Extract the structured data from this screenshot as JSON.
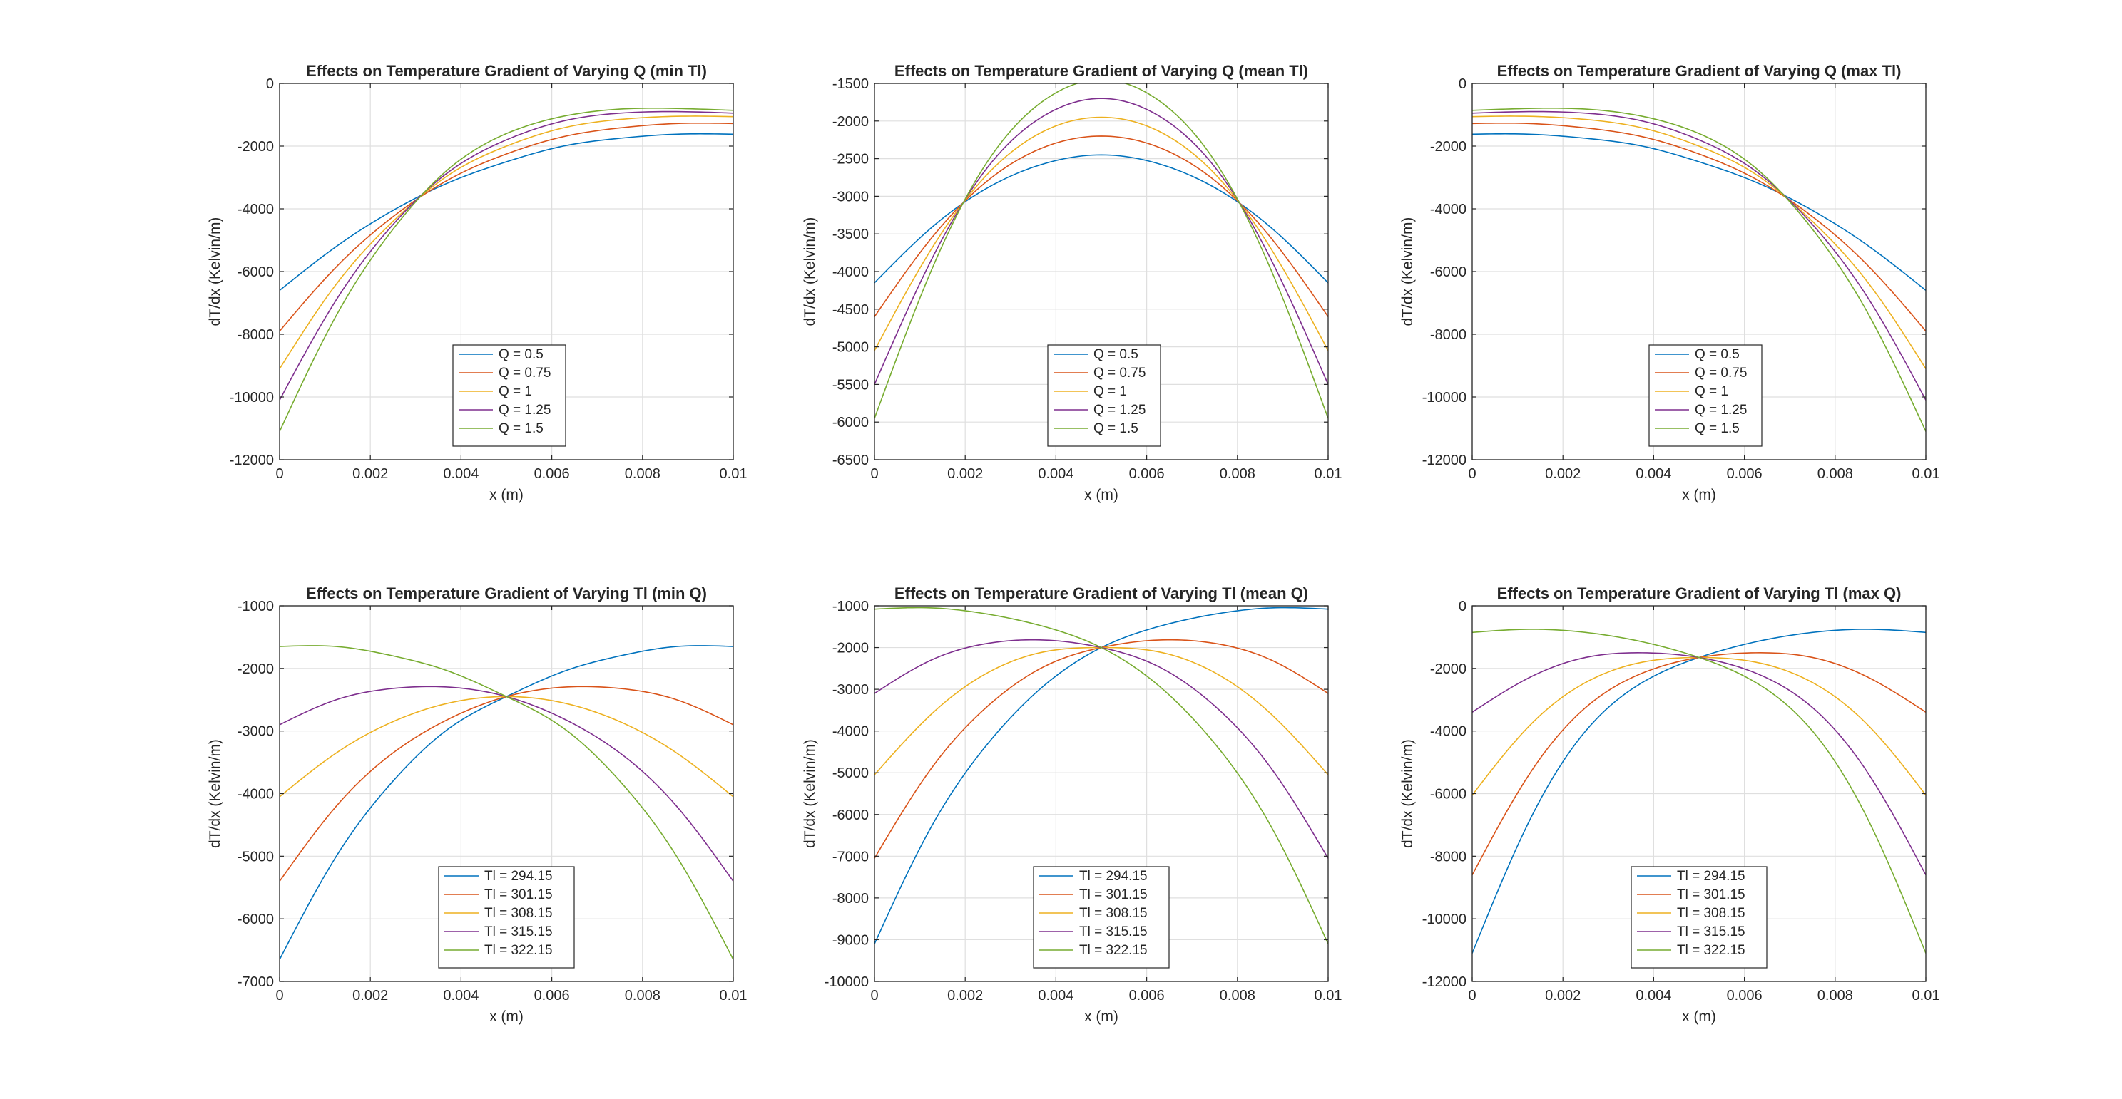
{
  "colors": {
    "series": [
      "#0072BD",
      "#D95319",
      "#EDB120",
      "#7E2F8E",
      "#77AC30"
    ],
    "grid": "#dfdfdf",
    "axis": "#262626"
  },
  "chart_data": [
    {
      "type": "line",
      "title": "Effects on Temperature Gradient of Varying Q (min Tl)",
      "xlabel": "x (m)",
      "ylabel": "dT/dx (Kelvin/m)",
      "xlim": [
        0,
        0.01
      ],
      "ylim": [
        -12000,
        0
      ],
      "xticks": [
        0,
        0.002,
        0.004,
        0.006,
        0.008,
        0.01
      ],
      "xtick_labels": [
        "0",
        "0.002",
        "0.004",
        "0.006",
        "0.008",
        "0.01"
      ],
      "yticks": [
        -12000,
        -10000,
        -8000,
        -6000,
        -4000,
        -2000,
        0
      ],
      "ytick_labels": [
        "-12000",
        "-10000",
        "-8000",
        "-6000",
        "-4000",
        "-2000",
        "0"
      ],
      "grid": true,
      "legend_position": "bottom-center",
      "series": [
        {
          "name": "Q = 0.5",
          "x": [
            0,
            0.00125,
            0.0025,
            0.00375,
            0.005,
            0.00625,
            0.0075,
            0.00875,
            0.01
          ],
          "y": [
            -6600,
            -5200,
            -4050,
            -3150,
            -2500,
            -2000,
            -1750,
            -1620,
            -1620
          ]
        },
        {
          "name": "Q = 0.75",
          "x": [
            0,
            0.00125,
            0.0025,
            0.00375,
            0.005,
            0.00625,
            0.0075,
            0.00875,
            0.01
          ],
          "y": [
            -7900,
            -5850,
            -4250,
            -3050,
            -2250,
            -1700,
            -1420,
            -1280,
            -1280
          ]
        },
        {
          "name": "Q = 1",
          "x": [
            0,
            0.00125,
            0.0025,
            0.00375,
            0.005,
            0.00625,
            0.0075,
            0.00875,
            0.01
          ],
          "y": [
            -9100,
            -6400,
            -4400,
            -2900,
            -2000,
            -1420,
            -1150,
            -1050,
            -1060
          ]
        },
        {
          "name": "Q = 1.25",
          "x": [
            0,
            0.00125,
            0.0025,
            0.00375,
            0.005,
            0.00625,
            0.0075,
            0.00875,
            0.01
          ],
          "y": [
            -10100,
            -6900,
            -4500,
            -2800,
            -1800,
            -1200,
            -950,
            -900,
            -950
          ]
        },
        {
          "name": "Q = 1.5",
          "x": [
            0,
            0.00125,
            0.0025,
            0.00375,
            0.005,
            0.00625,
            0.0075,
            0.00875,
            0.01
          ],
          "y": [
            -11100,
            -7400,
            -4650,
            -2700,
            -1600,
            -1050,
            -820,
            -800,
            -860
          ]
        }
      ]
    },
    {
      "type": "line",
      "title": "Effects on Temperature Gradient of Varying Q (mean Tl)",
      "xlabel": "x (m)",
      "ylabel": "dT/dx (Kelvin/m)",
      "xlim": [
        0,
        0.01
      ],
      "ylim": [
        -6500,
        -1500
      ],
      "xticks": [
        0,
        0.002,
        0.004,
        0.006,
        0.008,
        0.01
      ],
      "xtick_labels": [
        "0",
        "0.002",
        "0.004",
        "0.006",
        "0.008",
        "0.01"
      ],
      "yticks": [
        -6500,
        -6000,
        -5500,
        -5000,
        -4500,
        -4000,
        -3500,
        -3000,
        -2500,
        -2000,
        -1500
      ],
      "ytick_labels": [
        "-6500",
        "-6000",
        "-5500",
        "-5000",
        "-4500",
        "-4000",
        "-3500",
        "-3000",
        "-2500",
        "-2000",
        "-1500"
      ],
      "grid": true,
      "legend_position": "bottom-center",
      "series": [
        {
          "name": "Q = 0.5",
          "x": [
            0,
            0.00125,
            0.0025,
            0.00375,
            0.005,
            0.00625,
            0.0075,
            0.00875,
            0.01
          ],
          "y": [
            -4150,
            -3420,
            -2885,
            -2565,
            -2450,
            -2565,
            -2885,
            -3420,
            -4150
          ]
        },
        {
          "name": "Q = 0.75",
          "x": [
            0,
            0.00125,
            0.0025,
            0.00375,
            0.005,
            0.00625,
            0.0075,
            0.00875,
            0.01
          ],
          "y": [
            -4600,
            -3560,
            -2790,
            -2345,
            -2200,
            -2345,
            -2790,
            -3560,
            -4600
          ]
        },
        {
          "name": "Q = 1",
          "x": [
            0,
            0.00125,
            0.0025,
            0.00375,
            0.005,
            0.00625,
            0.0075,
            0.00875,
            0.01
          ],
          "y": [
            -5050,
            -3705,
            -2700,
            -2130,
            -1950,
            -2130,
            -2700,
            -3705,
            -5050
          ]
        },
        {
          "name": "Q = 1.25",
          "x": [
            0,
            0.00125,
            0.0025,
            0.00375,
            0.005,
            0.00625,
            0.0075,
            0.00875,
            0.01
          ],
          "y": [
            -5500,
            -3850,
            -2610,
            -1925,
            -1700,
            -1925,
            -2610,
            -3850,
            -5500
          ]
        },
        {
          "name": "Q = 1.5",
          "x": [
            0,
            0.00125,
            0.0025,
            0.00375,
            0.005,
            0.00625,
            0.0075,
            0.00875,
            0.01
          ],
          "y": [
            -5950,
            -3990,
            -2530,
            -1720,
            -1450,
            -1720,
            -2530,
            -3990,
            -5950
          ]
        }
      ]
    },
    {
      "type": "line",
      "title": "Effects on Temperature Gradient of Varying Q (max Tl)",
      "xlabel": "x (m)",
      "ylabel": "dT/dx (Kelvin/m)",
      "xlim": [
        0,
        0.01
      ],
      "ylim": [
        -12000,
        0
      ],
      "xticks": [
        0,
        0.002,
        0.004,
        0.006,
        0.008,
        0.01
      ],
      "xtick_labels": [
        "0",
        "0.002",
        "0.004",
        "0.006",
        "0.008",
        "0.01"
      ],
      "yticks": [
        -12000,
        -10000,
        -8000,
        -6000,
        -4000,
        -2000,
        0
      ],
      "ytick_labels": [
        "-12000",
        "-10000",
        "-8000",
        "-6000",
        "-4000",
        "-2000",
        "0"
      ],
      "grid": true,
      "legend_position": "bottom-left",
      "series": [
        {
          "name": "Q = 0.5",
          "x": [
            0,
            0.00125,
            0.0025,
            0.00375,
            0.005,
            0.00625,
            0.0075,
            0.00875,
            0.01
          ],
          "y": [
            -1620,
            -1620,
            -1750,
            -2000,
            -2500,
            -3150,
            -4050,
            -5200,
            -6600
          ]
        },
        {
          "name": "Q = 0.75",
          "x": [
            0,
            0.00125,
            0.0025,
            0.00375,
            0.005,
            0.00625,
            0.0075,
            0.00875,
            0.01
          ],
          "y": [
            -1280,
            -1280,
            -1420,
            -1700,
            -2250,
            -3050,
            -4250,
            -5850,
            -7900
          ]
        },
        {
          "name": "Q = 1",
          "x": [
            0,
            0.00125,
            0.0025,
            0.00375,
            0.005,
            0.00625,
            0.0075,
            0.00875,
            0.01
          ],
          "y": [
            -1060,
            -1050,
            -1150,
            -1420,
            -2000,
            -2900,
            -4400,
            -6400,
            -9100
          ]
        },
        {
          "name": "Q = 1.25",
          "x": [
            0,
            0.00125,
            0.0025,
            0.00375,
            0.005,
            0.00625,
            0.0075,
            0.00875,
            0.01
          ],
          "y": [
            -950,
            -900,
            -950,
            -1200,
            -1800,
            -2800,
            -4500,
            -6900,
            -10100
          ]
        },
        {
          "name": "Q = 1.5",
          "x": [
            0,
            0.00125,
            0.0025,
            0.00375,
            0.005,
            0.00625,
            0.0075,
            0.00875,
            0.01
          ],
          "y": [
            -860,
            -800,
            -820,
            -1050,
            -1600,
            -2700,
            -4650,
            -7400,
            -11100
          ]
        }
      ]
    },
    {
      "type": "line",
      "title": "Effects on Temperature Gradient of Varying Tl (min Q)",
      "xlabel": "x (m)",
      "ylabel": "dT/dx (Kelvin/m)",
      "xlim": [
        0,
        0.01
      ],
      "ylim": [
        -7000,
        -1000
      ],
      "xticks": [
        0,
        0.002,
        0.004,
        0.006,
        0.008,
        0.01
      ],
      "xtick_labels": [
        "0",
        "0.002",
        "0.004",
        "0.006",
        "0.008",
        "0.01"
      ],
      "yticks": [
        -7000,
        -6000,
        -5000,
        -4000,
        -3000,
        -2000,
        -1000
      ],
      "ytick_labels": [
        "-7000",
        "-6000",
        "-5000",
        "-4000",
        "-3000",
        "-2000",
        "-1000"
      ],
      "grid": true,
      "legend_position": "bottom-center",
      "series": [
        {
          "name": "Tl = 294.15",
          "x": [
            0,
            0.00125,
            0.0025,
            0.00375,
            0.005,
            0.00625,
            0.0075,
            0.00875,
            0.01
          ],
          "y": [
            -6650,
            -5000,
            -3800,
            -2950,
            -2450,
            -2050,
            -1800,
            -1650,
            -1650
          ]
        },
        {
          "name": "Tl = 301.15",
          "x": [
            0,
            0.00125,
            0.0025,
            0.00375,
            0.005,
            0.00625,
            0.0075,
            0.00875,
            0.01
          ],
          "y": [
            -5400,
            -4200,
            -3350,
            -2800,
            -2450,
            -2300,
            -2320,
            -2500,
            -2900
          ]
        },
        {
          "name": "Tl = 308.15",
          "x": [
            0,
            0.00125,
            0.0025,
            0.00375,
            0.005,
            0.00625,
            0.0075,
            0.00875,
            0.01
          ],
          "y": [
            -4050,
            -3350,
            -2850,
            -2550,
            -2450,
            -2550,
            -2850,
            -3350,
            -4050
          ]
        },
        {
          "name": "Tl = 315.15",
          "x": [
            0,
            0.00125,
            0.0025,
            0.00375,
            0.005,
            0.00625,
            0.0075,
            0.00875,
            0.01
          ],
          "y": [
            -2900,
            -2500,
            -2320,
            -2300,
            -2450,
            -2800,
            -3350,
            -4200,
            -5400
          ]
        },
        {
          "name": "Tl = 322.15",
          "x": [
            0,
            0.00125,
            0.0025,
            0.00375,
            0.005,
            0.00625,
            0.0075,
            0.00875,
            0.01
          ],
          "y": [
            -1650,
            -1650,
            -1800,
            -2050,
            -2450,
            -2950,
            -3800,
            -5000,
            -6650
          ]
        }
      ]
    },
    {
      "type": "line",
      "title": "Effects on Temperature Gradient of Varying Tl (mean Q)",
      "xlabel": "x (m)",
      "ylabel": "dT/dx (Kelvin/m)",
      "xlim": [
        0,
        0.01
      ],
      "ylim": [
        -10000,
        -1000
      ],
      "xticks": [
        0,
        0.002,
        0.004,
        0.006,
        0.008,
        0.01
      ],
      "xtick_labels": [
        "0",
        "0.002",
        "0.004",
        "0.006",
        "0.008",
        "0.01"
      ],
      "yticks": [
        -10000,
        -9000,
        -8000,
        -7000,
        -6000,
        -5000,
        -4000,
        -3000,
        -2000,
        -1000
      ],
      "ytick_labels": [
        "-10000",
        "-9000",
        "-8000",
        "-7000",
        "-6000",
        "-5000",
        "-4000",
        "-3000",
        "-2000",
        "-1000"
      ],
      "grid": true,
      "legend_position": "bottom-center",
      "series": [
        {
          "name": "Tl = 294.15",
          "x": [
            0,
            0.00125,
            0.0025,
            0.00375,
            0.005,
            0.00625,
            0.0075,
            0.00875,
            0.01
          ],
          "y": [
            -9100,
            -6300,
            -4300,
            -2900,
            -2000,
            -1500,
            -1200,
            -1050,
            -1080
          ]
        },
        {
          "name": "Tl = 301.15",
          "x": [
            0,
            0.00125,
            0.0025,
            0.00375,
            0.005,
            0.00625,
            0.0075,
            0.00875,
            0.01
          ],
          "y": [
            -7050,
            -4900,
            -3400,
            -2450,
            -2000,
            -1820,
            -1900,
            -2300,
            -3100
          ]
        },
        {
          "name": "Tl = 308.15",
          "x": [
            0,
            0.00125,
            0.0025,
            0.00375,
            0.005,
            0.00625,
            0.0075,
            0.00875,
            0.01
          ],
          "y": [
            -5050,
            -3600,
            -2600,
            -2100,
            -2000,
            -2100,
            -2600,
            -3600,
            -5050
          ]
        },
        {
          "name": "Tl = 315.15",
          "x": [
            0,
            0.00125,
            0.0025,
            0.00375,
            0.005,
            0.00625,
            0.0075,
            0.00875,
            0.01
          ],
          "y": [
            -3100,
            -2300,
            -1900,
            -1820,
            -2000,
            -2450,
            -3400,
            -4900,
            -7050
          ]
        },
        {
          "name": "Tl = 322.15",
          "x": [
            0,
            0.00125,
            0.0025,
            0.00375,
            0.005,
            0.00625,
            0.0075,
            0.00875,
            0.01
          ],
          "y": [
            -1080,
            -1050,
            -1200,
            -1500,
            -2000,
            -2900,
            -4300,
            -6300,
            -9100
          ]
        }
      ]
    },
    {
      "type": "line",
      "title": "Effects on Temperature Gradient of Varying Tl (max Q)",
      "xlabel": "x (m)",
      "ylabel": "dT/dx (Kelvin/m)",
      "xlim": [
        0,
        0.01
      ],
      "ylim": [
        -12000,
        0
      ],
      "xticks": [
        0,
        0.002,
        0.004,
        0.006,
        0.008,
        0.01
      ],
      "xtick_labels": [
        "0",
        "0.002",
        "0.004",
        "0.006",
        "0.008",
        "0.01"
      ],
      "yticks": [
        -12000,
        -10000,
        -8000,
        -6000,
        -4000,
        -2000,
        0
      ],
      "ytick_labels": [
        "-12000",
        "-10000",
        "-8000",
        "-6000",
        "-4000",
        "-2000",
        "0"
      ],
      "grid": true,
      "legend_position": "bottom-center",
      "series": [
        {
          "name": "Tl = 294.15",
          "x": [
            0,
            0.00125,
            0.0025,
            0.00375,
            0.005,
            0.00625,
            0.0075,
            0.00875,
            0.01
          ],
          "y": [
            -11100,
            -6900,
            -4000,
            -2450,
            -1650,
            -1150,
            -850,
            -750,
            -850
          ]
        },
        {
          "name": "Tl = 301.15",
          "x": [
            0,
            0.00125,
            0.0025,
            0.00375,
            0.005,
            0.00625,
            0.0075,
            0.00875,
            0.01
          ],
          "y": [
            -8600,
            -5400,
            -3250,
            -2150,
            -1650,
            -1500,
            -1650,
            -2300,
            -3400
          ]
        },
        {
          "name": "Tl = 308.15",
          "x": [
            0,
            0.00125,
            0.0025,
            0.00375,
            0.005,
            0.00625,
            0.0075,
            0.00875,
            0.01
          ],
          "y": [
            -6050,
            -3850,
            -2450,
            -1800,
            -1650,
            -1800,
            -2450,
            -3850,
            -6050
          ]
        },
        {
          "name": "Tl = 315.15",
          "x": [
            0,
            0.00125,
            0.0025,
            0.00375,
            0.005,
            0.00625,
            0.0075,
            0.00875,
            0.01
          ],
          "y": [
            -3400,
            -2300,
            -1650,
            -1500,
            -1650,
            -2150,
            -3250,
            -5400,
            -8600
          ]
        },
        {
          "name": "Tl = 322.15",
          "x": [
            0,
            0.00125,
            0.0025,
            0.00375,
            0.005,
            0.00625,
            0.0075,
            0.00875,
            0.01
          ],
          "y": [
            -850,
            -750,
            -850,
            -1150,
            -1650,
            -2450,
            -4000,
            -6900,
            -11100
          ]
        }
      ]
    }
  ]
}
